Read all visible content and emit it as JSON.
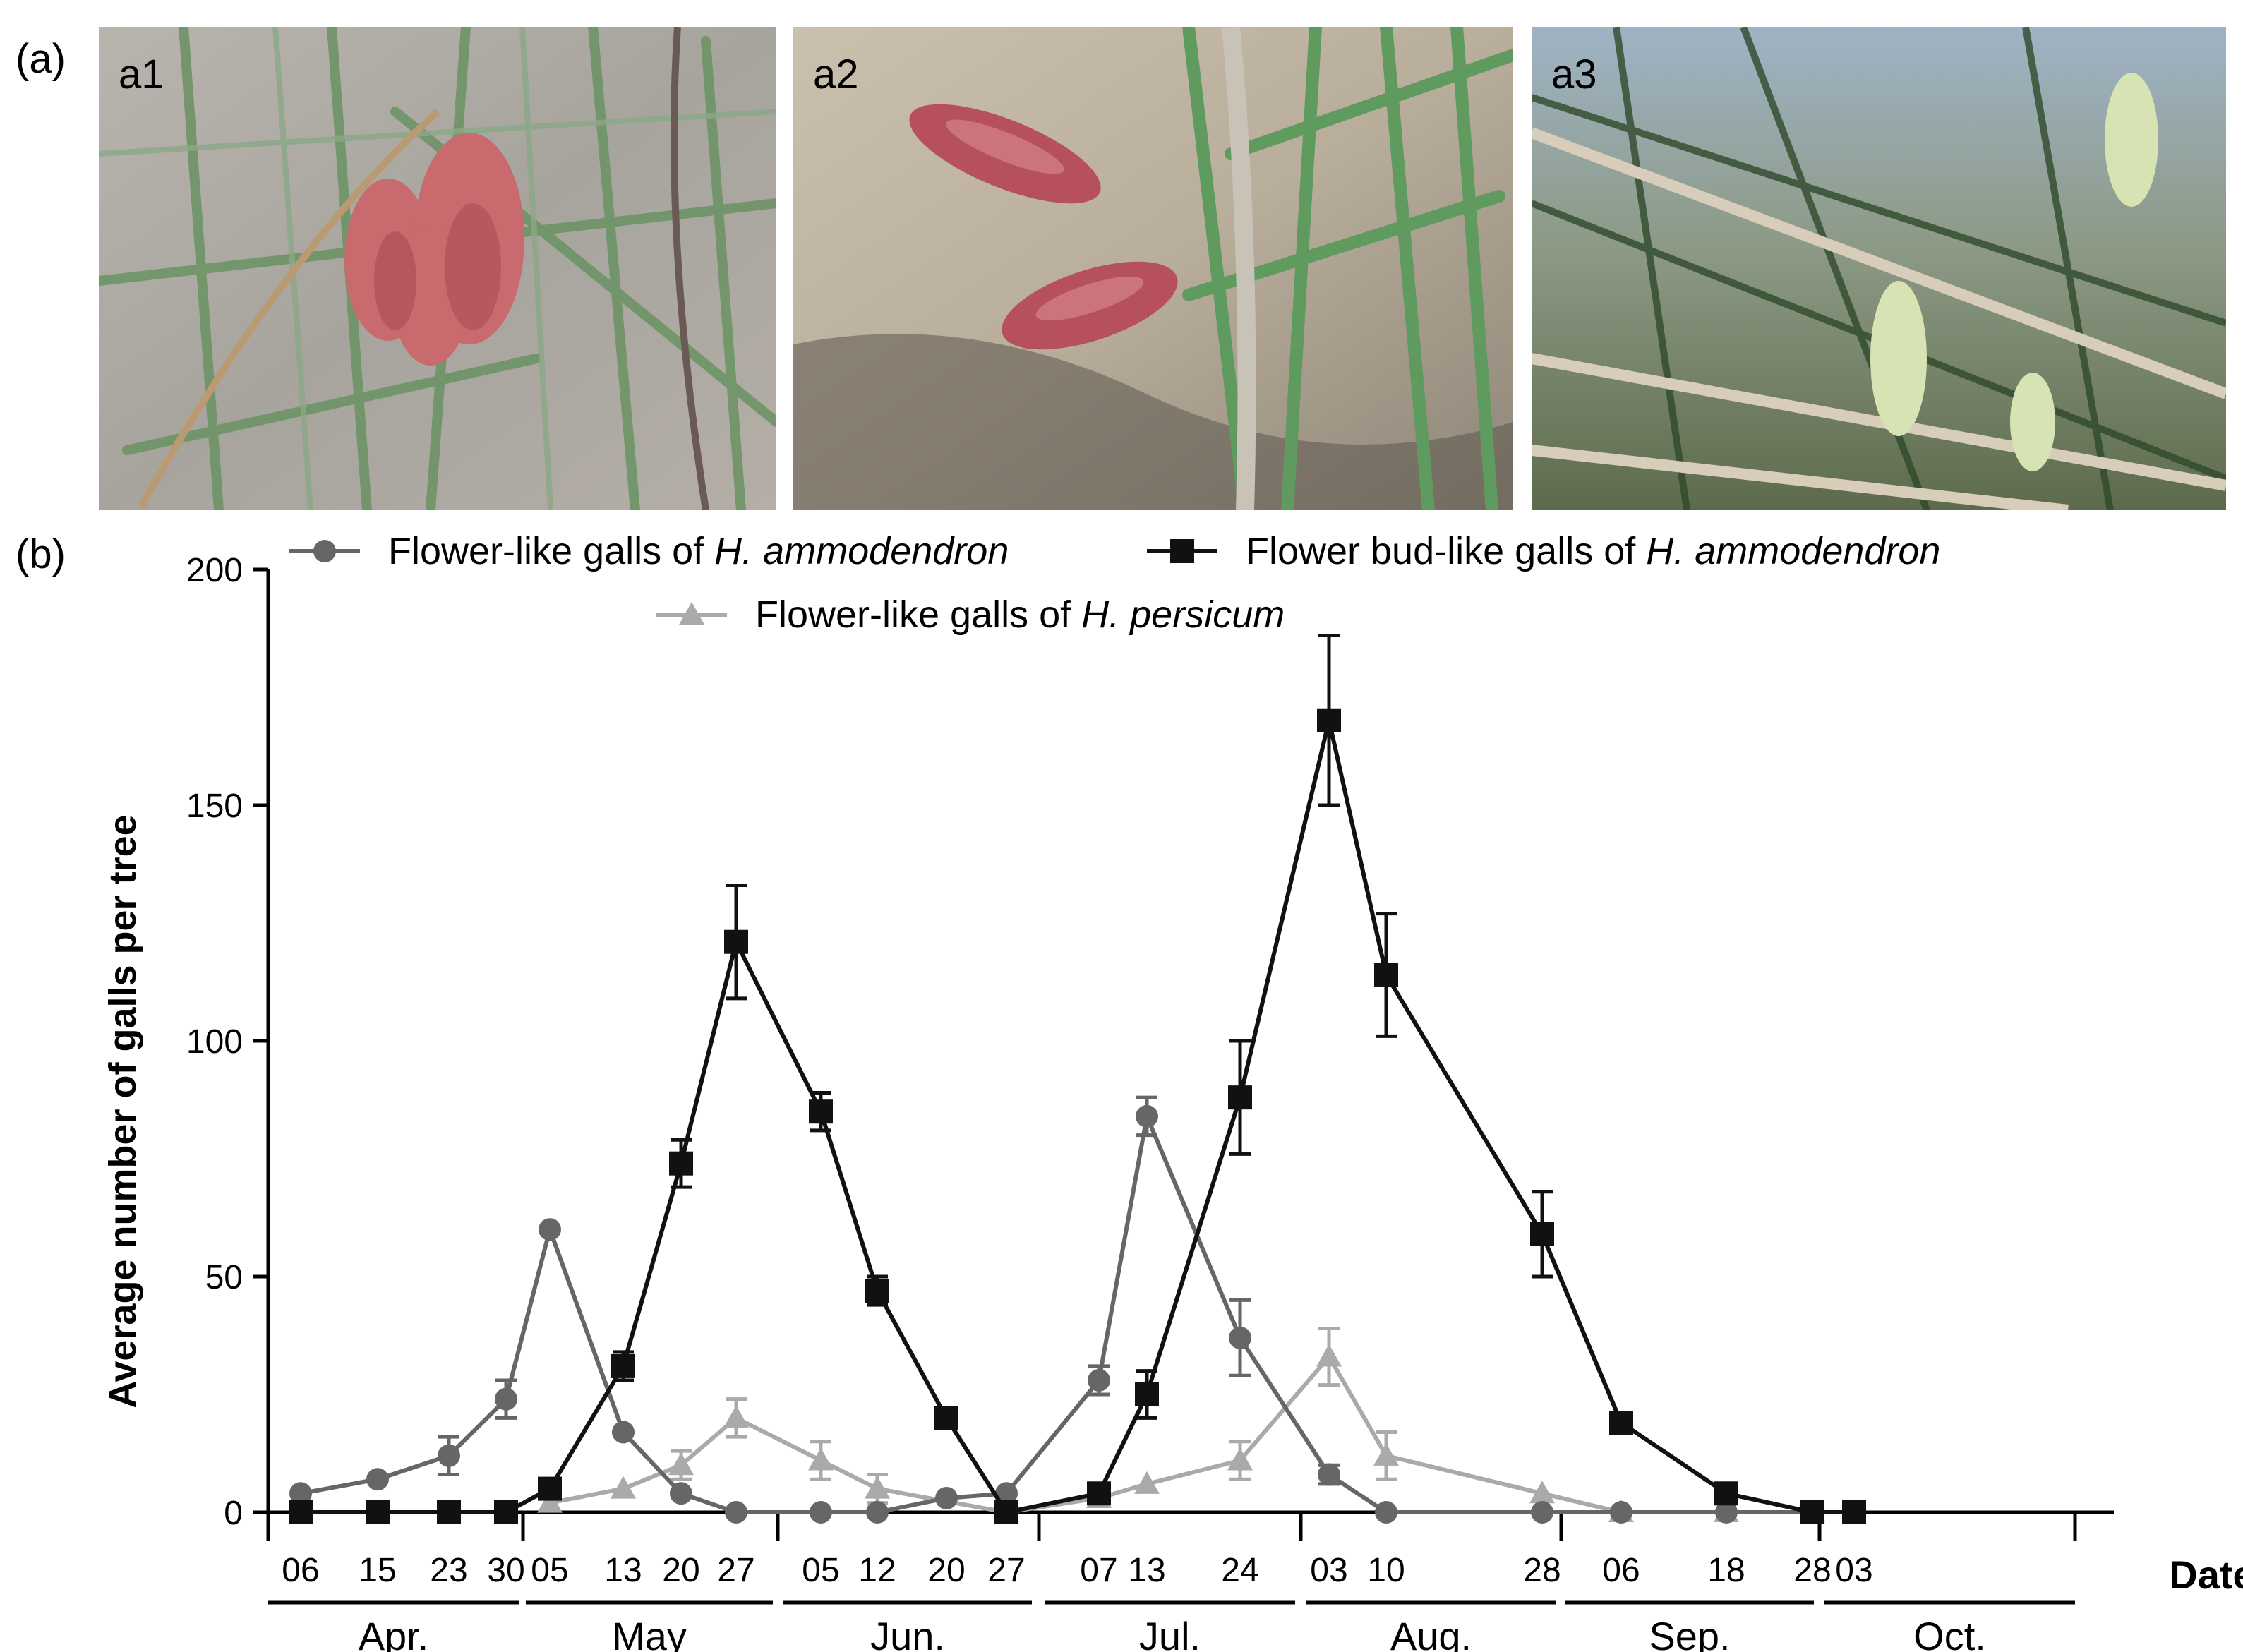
{
  "panel_a_label": "(a)",
  "panel_b_label": "(b)",
  "photos": [
    {
      "tag": "a1"
    },
    {
      "tag": "a2"
    },
    {
      "tag": "a3"
    }
  ],
  "chart_data": {
    "type": "line",
    "ylabel": "Average number of galls per tree",
    "xlabel": "Date",
    "ylim": [
      0,
      200
    ],
    "yticks": [
      0,
      50,
      100,
      150,
      200
    ],
    "x_order": [
      "Apr 06",
      "Apr 15",
      "Apr 23",
      "Apr 30",
      "May 05",
      "May 13",
      "May 20",
      "May 27",
      "Jun 05",
      "Jun 12",
      "Jun 20",
      "Jun 27",
      "Jul 07",
      "Jul 13",
      "Jul 24",
      "Aug 03",
      "Aug 10",
      "Aug 28",
      "Sep 06",
      "Sep 18",
      "Sep 28",
      "Oct 03"
    ],
    "day_labels": [
      "06",
      "15",
      "23",
      "30",
      "05",
      "13",
      "20",
      "27",
      "05",
      "12",
      "20",
      "27",
      "07",
      "13",
      "24",
      "03",
      "10",
      "28",
      "06",
      "18",
      "28",
      "03"
    ],
    "months": [
      "Apr.",
      "May",
      "Jun.",
      "Jul.",
      "Aug.",
      "Sep.",
      "Oct."
    ],
    "legend": [
      {
        "prefix": "Flower-like galls of ",
        "species": "H. ammodendron"
      },
      {
        "prefix": "Flower bud-like galls of ",
        "species": "H. ammodendron"
      },
      {
        "prefix": "Flower-like galls of ",
        "species": "H. persicum"
      }
    ],
    "series": [
      {
        "name": "Flower-like galls of H. ammodendron",
        "color": "#666666",
        "marker": "circle",
        "points": [
          {
            "x": "Apr 06",
            "y": 4
          },
          {
            "x": "Apr 15",
            "y": 7
          },
          {
            "x": "Apr 23",
            "y": 12,
            "err": 4
          },
          {
            "x": "Apr 30",
            "y": 24,
            "err": 4
          },
          {
            "x": "May 05",
            "y": 60
          },
          {
            "x": "May 13",
            "y": 17
          },
          {
            "x": "May 20",
            "y": 4
          },
          {
            "x": "May 27",
            "y": 0
          },
          {
            "x": "Jun 05",
            "y": 0
          },
          {
            "x": "Jun 12",
            "y": 0
          },
          {
            "x": "Jun 20",
            "y": 3
          },
          {
            "x": "Jun 27",
            "y": 4
          },
          {
            "x": "Jul 07",
            "y": 28,
            "err": 3
          },
          {
            "x": "Jul 13",
            "y": 84,
            "err": 4
          },
          {
            "x": "Jul 24",
            "y": 37,
            "err": 8
          },
          {
            "x": "Aug 03",
            "y": 8,
            "err": 2
          },
          {
            "x": "Aug 10",
            "y": 0
          },
          {
            "x": "Aug 28",
            "y": 0
          },
          {
            "x": "Sep 06",
            "y": 0
          },
          {
            "x": "Sep 18",
            "y": 0
          },
          {
            "x": "Sep 28",
            "y": 0
          },
          {
            "x": "Oct 03",
            "y": 0
          }
        ]
      },
      {
        "name": "Flower bud-like galls of H. ammodendron",
        "color": "#111111",
        "marker": "square",
        "points": [
          {
            "x": "Apr 06",
            "y": 0
          },
          {
            "x": "Apr 15",
            "y": 0
          },
          {
            "x": "Apr 23",
            "y": 0
          },
          {
            "x": "Apr 30",
            "y": 0
          },
          {
            "x": "May 05",
            "y": 5
          },
          {
            "x": "May 13",
            "y": 31,
            "err": 3
          },
          {
            "x": "May 20",
            "y": 74,
            "err": 5
          },
          {
            "x": "May 27",
            "y": 121,
            "err": 12
          },
          {
            "x": "Jun 05",
            "y": 85,
            "err": 4
          },
          {
            "x": "Jun 12",
            "y": 47,
            "err": 3
          },
          {
            "x": "Jun 20",
            "y": 20
          },
          {
            "x": "Jun 27",
            "y": 0
          },
          {
            "x": "Jul 07",
            "y": 4
          },
          {
            "x": "Jul 13",
            "y": 25,
            "err": 5
          },
          {
            "x": "Jul 24",
            "y": 88,
            "err": 12
          },
          {
            "x": "Aug 03",
            "y": 168,
            "err": 18
          },
          {
            "x": "Aug 10",
            "y": 114,
            "err": 13
          },
          {
            "x": "Aug 28",
            "y": 59,
            "err": 9
          },
          {
            "x": "Sep 06",
            "y": 19
          },
          {
            "x": "Sep 18",
            "y": 4
          },
          {
            "x": "Sep 28",
            "y": 0
          },
          {
            "x": "Oct 03",
            "y": 0
          }
        ]
      },
      {
        "name": "Flower-like galls of H. persicum",
        "color": "#aaaaaa",
        "marker": "triangle",
        "points": [
          {
            "x": "May 05",
            "y": 2
          },
          {
            "x": "May 13",
            "y": 5
          },
          {
            "x": "May 20",
            "y": 10,
            "err": 3
          },
          {
            "x": "May 27",
            "y": 20,
            "err": 4
          },
          {
            "x": "Jun 05",
            "y": 11,
            "err": 4
          },
          {
            "x": "Jun 12",
            "y": 5,
            "err": 3
          },
          {
            "x": "Jun 27",
            "y": 0
          },
          {
            "x": "Jul 07",
            "y": 3
          },
          {
            "x": "Jul 13",
            "y": 6
          },
          {
            "x": "Jul 24",
            "y": 11,
            "err": 4
          },
          {
            "x": "Aug 03",
            "y": 33,
            "err": 6
          },
          {
            "x": "Aug 10",
            "y": 12,
            "err": 5
          },
          {
            "x": "Aug 28",
            "y": 4
          },
          {
            "x": "Sep 06",
            "y": 0
          },
          {
            "x": "Sep 18",
            "y": 0
          },
          {
            "x": "Sep 28",
            "y": 0
          }
        ]
      }
    ]
  }
}
